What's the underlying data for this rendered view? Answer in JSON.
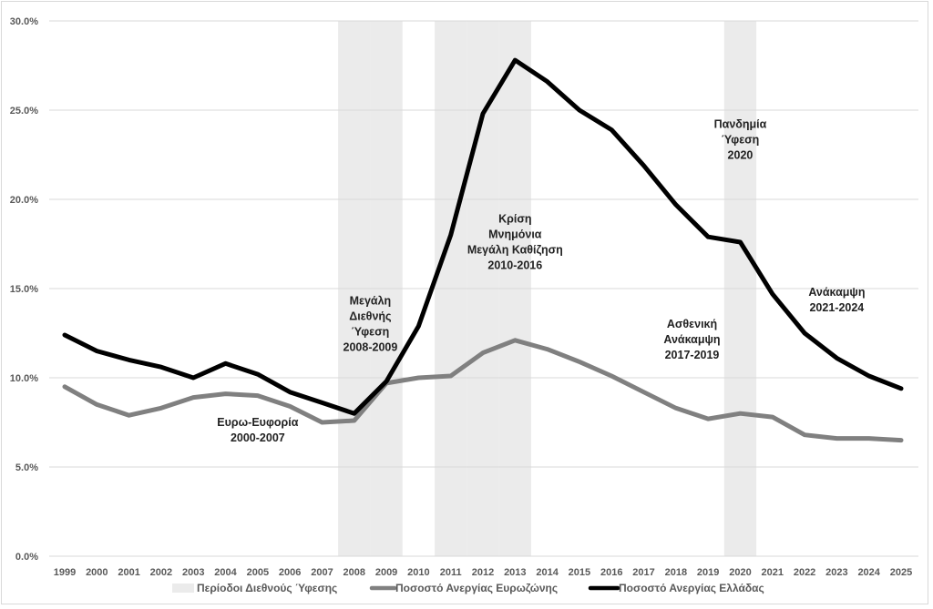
{
  "chart_data": {
    "type": "line",
    "title": "",
    "xlabel": "",
    "ylabel": "",
    "ylim": [
      0,
      30
    ],
    "yticks": [
      "0.0%",
      "5.0%",
      "10.0%",
      "15.0%",
      "20.0%",
      "25.0%",
      "30.0%"
    ],
    "ytick_values": [
      0,
      5,
      10,
      15,
      20,
      25,
      30
    ],
    "grid": true,
    "legend_position": "bottom",
    "categories": [
      "1999",
      "2000",
      "2001",
      "2002",
      "2003",
      "2004",
      "2005",
      "2006",
      "2007",
      "2008",
      "2009",
      "2010",
      "2011",
      "2012",
      "2013",
      "2014",
      "2015",
      "2016",
      "2017",
      "2018",
      "2019",
      "2020",
      "2021",
      "2022",
      "2023",
      "2024",
      "2025"
    ],
    "recession_periods": {
      "name": "Περίοδοι Διεθνούς Ύφεσης",
      "color": "#ebebeb",
      "years": [
        "2008",
        "2009",
        "2011",
        "2012",
        "2013",
        "2020"
      ]
    },
    "series": [
      {
        "name": "Ποσοστό Ανεργίας Ευρωζώνης",
        "color": "#808080",
        "values": [
          9.5,
          8.5,
          7.9,
          8.3,
          8.9,
          9.1,
          9.0,
          8.4,
          7.5,
          7.6,
          9.7,
          10.0,
          10.1,
          11.4,
          12.1,
          11.6,
          10.9,
          10.1,
          9.2,
          8.3,
          7.7,
          8.0,
          7.8,
          6.8,
          6.6,
          6.6,
          6.5
        ]
      },
      {
        "name": "Ποσοστό Ανεργίας Ελλάδας",
        "color": "#000000",
        "values": [
          12.4,
          11.5,
          11.0,
          10.6,
          10.0,
          10.8,
          10.2,
          9.2,
          8.6,
          8.0,
          9.8,
          12.9,
          18.0,
          24.8,
          27.8,
          26.6,
          25.0,
          23.9,
          21.9,
          19.7,
          17.9,
          17.6,
          14.7,
          12.5,
          11.1,
          10.1,
          9.4
        ]
      }
    ],
    "annotations": [
      {
        "lines": [
          "Ευρω-Ευφορία",
          "2000-2007"
        ],
        "x": "2005",
        "y": 7.3
      },
      {
        "lines": [
          "Μεγάλη",
          "Διεθνής",
          "Ύφεση",
          "2008-2009"
        ],
        "x": "2008.5",
        "y": 14.1
      },
      {
        "lines": [
          "Κρίση",
          "Μνημόνια",
          "Μεγάλη Καθίζηση",
          "2010-2016"
        ],
        "x": "2013",
        "y": 18.7
      },
      {
        "lines": [
          "Πανδημία",
          "Ύφεση",
          "2020"
        ],
        "x": "2020",
        "y": 24.0
      },
      {
        "lines": [
          "Ασθενική",
          "Ανάκαμψη",
          "2017-2019"
        ],
        "x": "2018.5",
        "y": 12.8
      },
      {
        "lines": [
          "Ανάκαμψη",
          "2021-2024"
        ],
        "x": "2023",
        "y": 14.6
      }
    ]
  }
}
